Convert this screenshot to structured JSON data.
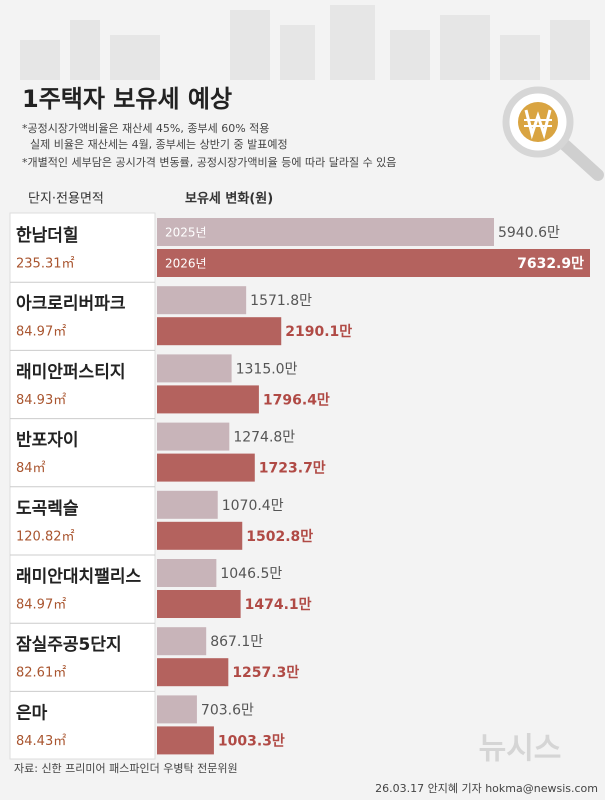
{
  "chart_data": {
    "type": "grouped-bar",
    "title": "1주택자 보유세 예상",
    "notes": [
      "*공정시장가액비율은 재산세 45%, 종부세 60% 적용",
      "실제 비율은 재산세는 4월, 종부세는 상반기 중 발표예정",
      "*개별적인 세부담은 공시가격 변동률, 공정시장가액비율 등에 따라 달라질 수 있음"
    ],
    "category_header": "단지·전용면적",
    "value_header": "보유세 변화(원)",
    "categories": [
      "한남더힐",
      "아크로리버파크",
      "래미안퍼스티지",
      "반포자이",
      "도곡렉슬",
      "래미안대치팰리스",
      "잠실주공5단지",
      "은마"
    ],
    "category_details": [
      "235.31㎡",
      "84.97㎡",
      "84.93㎡",
      "84㎡",
      "120.82㎡",
      "84.97㎡",
      "82.61㎡",
      "84.43㎡"
    ],
    "series": [
      {
        "name": "2025년",
        "color": "#c8b4b9",
        "values": [
          5940.6,
          1571.8,
          1315.0,
          1274.8,
          1070.4,
          1046.5,
          867.1,
          703.6
        ],
        "value_labels": [
          "5940.6만",
          "1571.8만",
          "1315.0만",
          "1274.8만",
          "1070.4만",
          "1046.5만",
          "867.1만",
          "703.6만"
        ]
      },
      {
        "name": "2026년",
        "color": "#b4625e",
        "values": [
          7632.9,
          2190.1,
          1796.4,
          1723.7,
          1502.8,
          1474.1,
          1257.3,
          1003.3
        ],
        "value_labels": [
          "7632.9만",
          "2190.1만",
          "1796.4만",
          "1723.7만",
          "1502.8만",
          "1474.1만",
          "1257.3만",
          "1003.3만"
        ]
      }
    ],
    "source": "자료: 신한 프리미어 패스파인더 우병탁 전문위원",
    "credit": "26.03.17 안지혜 기자 hokma@newsis.com",
    "logo": "뉴시스"
  }
}
